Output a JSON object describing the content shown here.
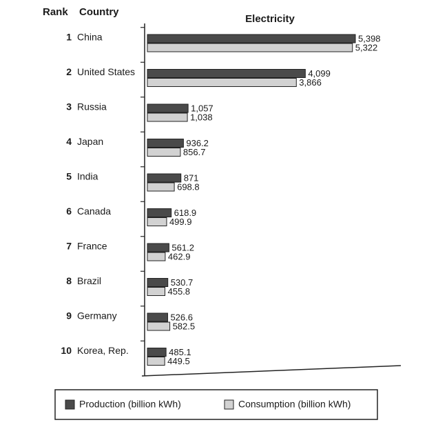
{
  "chart_data": {
    "type": "bar",
    "orientation": "horizontal",
    "title": "Electricity",
    "rank_header": "Rank",
    "category_header": "Country",
    "ranks": [
      1,
      2,
      3,
      4,
      5,
      6,
      7,
      8,
      9,
      10
    ],
    "categories": [
      "China",
      "United States",
      "Russia",
      "Japan",
      "India",
      "Canada",
      "France",
      "Brazil",
      "Germany",
      "Korea, Rep."
    ],
    "series": [
      {
        "name": "Production (billion kWh)",
        "color": "#4a4a4a",
        "values": [
          5398,
          4099,
          1057,
          936.2,
          871,
          618.9,
          561.2,
          530.7,
          526.6,
          485.1
        ],
        "value_labels": [
          "5,398",
          "4,099",
          "1,057",
          "936.2",
          "871",
          "618.9",
          "561.2",
          "530.7",
          "526.6",
          "485.1"
        ]
      },
      {
        "name": "Consumption (billion kWh)",
        "color": "#d2d2d2",
        "values": [
          5322,
          3866,
          1038,
          856.7,
          698.8,
          499.9,
          462.9,
          455.8,
          582.5,
          449.5
        ],
        "value_labels": [
          "5,322",
          "3,866",
          "1,038",
          "856.7",
          "698.8",
          "499.9",
          "462.9",
          "455.8",
          "582.5",
          "449.5"
        ]
      }
    ],
    "legend": "bottom"
  }
}
